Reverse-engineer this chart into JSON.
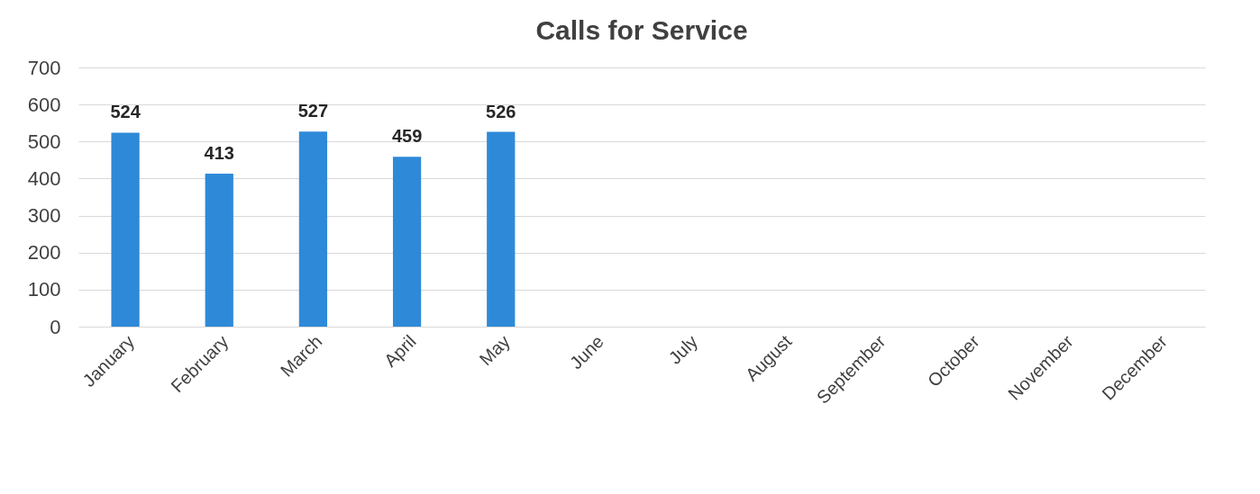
{
  "chart_data": {
    "type": "bar",
    "title": "Calls for Service",
    "categories": [
      "January",
      "February",
      "March",
      "April",
      "May",
      "June",
      "July",
      "August",
      "September",
      "October",
      "November",
      "December"
    ],
    "series": [
      {
        "color": "#2e8ad8",
        "values": [
          524,
          413,
          527,
          459,
          526,
          null,
          null,
          null,
          null,
          null,
          null,
          null
        ]
      }
    ],
    "ylim": [
      0,
      700
    ],
    "yticks": [
      0,
      100,
      200,
      300,
      400,
      500,
      600,
      700
    ],
    "grid": "y",
    "data_labels": true
  }
}
